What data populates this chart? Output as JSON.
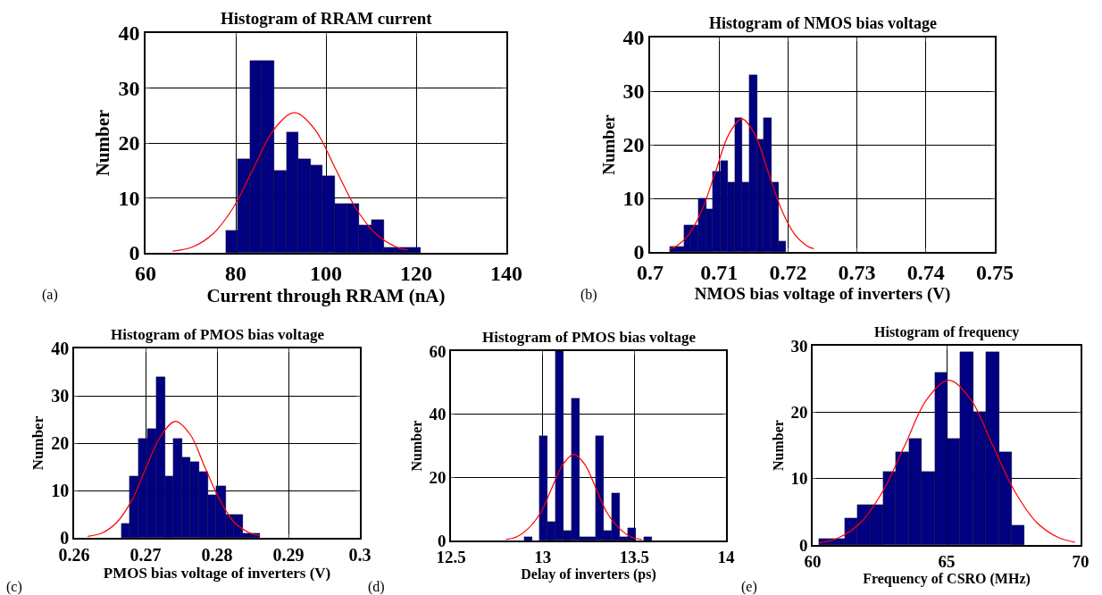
{
  "chart_data": [
    {
      "type": "histogram",
      "title": "Histogram of RRAM current",
      "xlabel": "Current through RRAM (nA)",
      "ylabel": "Number",
      "annotations": [
        "(a)"
      ],
      "color": "#000080",
      "grid": true,
      "xlim": [
        60,
        140
      ],
      "xticks": [
        60,
        80,
        100,
        120,
        140
      ],
      "ylim": [
        0,
        40
      ],
      "yticks": [
        0,
        10,
        20,
        30,
        40
      ],
      "bins": [
        77.75,
        80.44,
        83.14,
        85.83,
        88.53,
        91.22,
        93.92,
        96.61,
        99.3,
        102.0,
        104.7,
        107.4,
        110.1,
        112.8,
        115.5,
        118.2,
        120.9
      ],
      "values": [
        4,
        17,
        35,
        35,
        15,
        22,
        17,
        16,
        14,
        9,
        9,
        5,
        6,
        1,
        1,
        1
      ],
      "series": [
        {
          "type": "line",
          "color": "#ff0000",
          "x": [
            66,
            70.5,
            75,
            79.5,
            84,
            88.5,
            93,
            97.5,
            102,
            106.5,
            111,
            115.5,
            118
          ],
          "values": [
            0.3,
            1.1,
            3.5,
            8.3,
            15.5,
            22.5,
            25.5,
            22.5,
            15.5,
            8.3,
            3.5,
            1.1,
            0.5
          ]
        }
      ]
    },
    {
      "type": "histogram",
      "title": "Histogram of NMOS bias voltage",
      "xlabel": "NMOS bias voltage of inverters (V)",
      "ylabel": "Number",
      "annotations": [
        "(b)"
      ],
      "color": "#000080",
      "grid": true,
      "xlim": [
        0.7,
        0.75
      ],
      "xticks": [
        {
          "value": 0.7,
          "label": "0.7"
        },
        0.71,
        0.72,
        0.73,
        0.74,
        0.75
      ],
      "ylim": [
        0,
        40
      ],
      "yticks": [
        0,
        10,
        20,
        30,
        40
      ],
      "bins": [
        0.7028,
        0.7039,
        0.7049,
        0.706,
        0.707,
        0.7081,
        0.7091,
        0.7102,
        0.7113,
        0.7123,
        0.7134,
        0.7144,
        0.7155,
        0.7165,
        0.7176,
        0.7186,
        0.7197
      ],
      "values": [
        1,
        1,
        5,
        5,
        10,
        8,
        15,
        17,
        13,
        25,
        13,
        33,
        21,
        25,
        13,
        2
      ],
      "series": [
        {
          "type": "line",
          "color": "#ff0000",
          "x": [
            0.70285,
            0.7038,
            0.7057,
            0.7076,
            0.7095,
            0.7114,
            0.7133,
            0.7152,
            0.7171,
            0.719,
            0.7209,
            0.7228,
            0.72375
          ],
          "values": [
            0.6,
            1.1,
            3.4,
            8.1,
            15.0,
            21.9,
            24.8,
            21.9,
            15.0,
            8.1,
            3.4,
            1.1,
            0.6
          ]
        }
      ]
    },
    {
      "type": "histogram",
      "title": "Histogram of PMOS bias voltage",
      "xlabel": "PMOS bias voltage of inverters (V)",
      "ylabel": "Number",
      "annotations": [
        "(c)"
      ],
      "color": "#000080",
      "grid": true,
      "xlim": [
        0.26,
        0.3
      ],
      "xticks": [
        0.26,
        0.27,
        0.28,
        0.29,
        {
          "value": 0.3,
          "label": "0.3"
        }
      ],
      "ylim": [
        0,
        40
      ],
      "yticks": [
        0,
        10,
        20,
        30,
        40
      ],
      "bins": [
        0.2666,
        0.2678,
        0.269,
        0.2703,
        0.2715,
        0.2727,
        0.2739,
        0.2751,
        0.2763,
        0.2775,
        0.2787,
        0.2799,
        0.2812,
        0.2824,
        0.2836,
        0.2848,
        0.286
      ],
      "values": [
        3,
        13,
        21,
        23,
        34,
        13,
        21,
        17,
        16,
        14,
        9,
        11,
        5,
        5,
        1,
        1
      ],
      "series": [
        {
          "type": "line",
          "color": "#ff0000",
          "x": [
            0.2619,
            0.264,
            0.266,
            0.2681,
            0.2701,
            0.2722,
            0.2742,
            0.2763,
            0.2783,
            0.2804,
            0.2824,
            0.2845,
            0.2859
          ],
          "values": [
            0.3,
            1.1,
            3.3,
            8.0,
            14.9,
            21.7,
            24.6,
            21.7,
            14.9,
            8.0,
            3.3,
            1.1,
            0.5
          ]
        }
      ]
    },
    {
      "type": "histogram",
      "title": "Histogram of PMOS bias voltage",
      "xlabel": "Delay of inverters (ps)",
      "ylabel": "Number",
      "annotations": [
        "(d)"
      ],
      "color": "#000080",
      "grid": true,
      "xlim": [
        12.5,
        14
      ],
      "xticks": [
        12.5,
        13,
        13.5,
        14
      ],
      "ylim": [
        0,
        60
      ],
      "yticks": [
        0,
        20,
        40,
        60
      ],
      "bins": [
        12.897,
        12.941,
        12.984,
        13.028,
        13.072,
        13.116,
        13.159,
        13.203,
        13.247,
        13.291,
        13.334,
        13.378,
        13.422,
        13.466,
        13.509,
        13.553,
        13.597
      ],
      "values": [
        1,
        0,
        33,
        6,
        60,
        3,
        45,
        1,
        1,
        33,
        3,
        15,
        1,
        4,
        0,
        1
      ],
      "series": [
        {
          "type": "line",
          "color": "#ff0000",
          "x": [
            12.8,
            12.86,
            12.92,
            12.99,
            13.05,
            13.11,
            13.17,
            13.23,
            13.29,
            13.35,
            13.42,
            13.48,
            13.54
          ],
          "values": [
            0.3,
            1.2,
            3.7,
            8.9,
            16.6,
            24.1,
            27.3,
            24.1,
            16.6,
            8.9,
            3.7,
            1.2,
            0.3
          ]
        }
      ]
    },
    {
      "type": "histogram",
      "title": "Histogram of frequency",
      "xlabel": "Frequency of CSRO (MHz)",
      "ylabel": "Number",
      "annotations": [
        "(e)"
      ],
      "color": "#000080",
      "grid": true,
      "xlim": [
        60,
        70
      ],
      "xticks": [
        60,
        65,
        70
      ],
      "ylim": [
        0,
        30
      ],
      "yticks": [
        0,
        10,
        20,
        30
      ],
      "bins": [
        60.24,
        60.72,
        61.2,
        61.68,
        62.16,
        62.63,
        63.11,
        63.59,
        64.07,
        64.55,
        65.03,
        65.51,
        65.99,
        66.47,
        66.95,
        67.43,
        67.9
      ],
      "values": [
        1,
        1,
        4,
        6,
        6,
        11,
        14,
        16,
        11,
        26,
        16,
        29,
        20,
        29,
        14,
        3
      ],
      "series": [
        {
          "type": "line",
          "color": "#ff0000",
          "x": [
            60.24,
            60.98,
            61.8,
            62.62,
            63.44,
            64.26,
            65.08,
            65.9,
            66.72,
            67.54,
            68.36,
            69.18,
            69.8
          ],
          "values": [
            0.3,
            1.1,
            3.4,
            8.1,
            15.0,
            21.9,
            24.8,
            21.9,
            15.0,
            8.1,
            3.4,
            1.1,
            0.4
          ]
        }
      ]
    }
  ]
}
